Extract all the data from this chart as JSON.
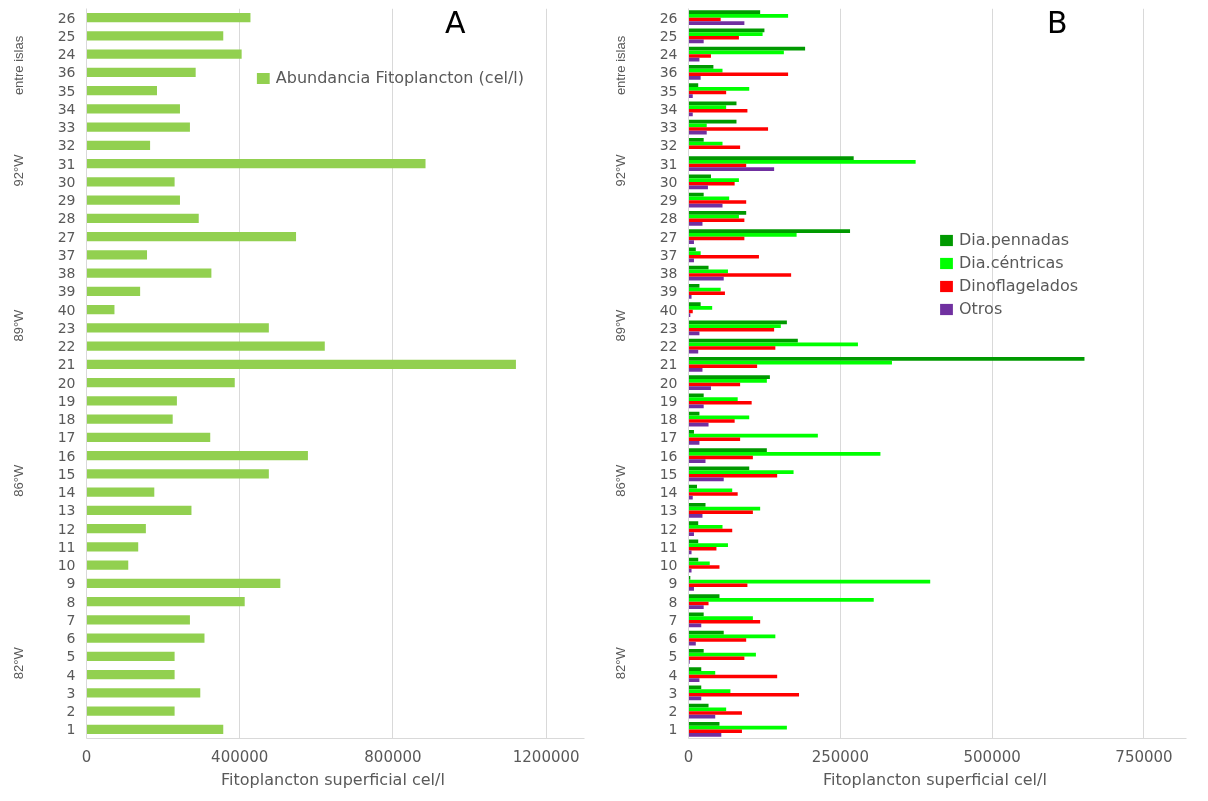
{
  "chart_data": [
    {
      "type": "bar",
      "orientation": "horizontal",
      "title": "A",
      "xlabel": "Fitoplancton superficial  cel/l",
      "categories": [
        "26",
        "25",
        "24",
        "36",
        "35",
        "34",
        "33",
        "32",
        "31",
        "30",
        "29",
        "28",
        "27",
        "37",
        "38",
        "39",
        "40",
        "23",
        "22",
        "21",
        "20",
        "19",
        "18",
        "17",
        "16",
        "15",
        "14",
        "13",
        "12",
        "11",
        "10",
        "9",
        "8",
        "7",
        "6",
        "5",
        "4",
        "3",
        "2",
        "1"
      ],
      "series": [
        {
          "name": "Abundancia Fitoplancton (cel/l)",
          "color": "#92d050",
          "values": [
            428000,
            357000,
            405000,
            285000,
            184000,
            244000,
            270000,
            166000,
            885000,
            230000,
            244000,
            293000,
            547000,
            158000,
            326000,
            140000,
            73000,
            476000,
            622000,
            1121000,
            387000,
            236000,
            225000,
            323000,
            578000,
            476000,
            177000,
            274000,
            155000,
            135000,
            109000,
            506000,
            413000,
            270000,
            308000,
            230000,
            230000,
            297000,
            230000,
            357000
          ]
        }
      ],
      "xlim": [
        0,
        1300000
      ],
      "xticks": [
        0,
        400000,
        800000,
        1200000
      ],
      "grid": "x",
      "legend": "top right",
      "annotations": [
        "entre islas",
        "92°W",
        "89°W",
        "86°W",
        "82°W"
      ]
    },
    {
      "type": "bar",
      "orientation": "horizontal",
      "title": "B",
      "xlabel": "Fitoplancton superficial  cel/l",
      "categories": [
        "26",
        "25",
        "24",
        "36",
        "35",
        "34",
        "33",
        "32",
        "31",
        "30",
        "29",
        "28",
        "27",
        "37",
        "38",
        "39",
        "40",
        "23",
        "22",
        "21",
        "20",
        "19",
        "18",
        "17",
        "16",
        "15",
        "14",
        "13",
        "12",
        "11",
        "10",
        "9",
        "8",
        "7",
        "6",
        "5",
        "4",
        "3",
        "2",
        "1"
      ],
      "series": [
        {
          "name": "Dia.pennadas",
          "color": "#009900",
          "values": [
            118000,
            125000,
            192000,
            41000,
            16000,
            79000,
            79000,
            25000,
            272000,
            37000,
            25000,
            95000,
            266000,
            12000,
            33000,
            18000,
            20000,
            162000,
            180000,
            652000,
            134000,
            25000,
            18000,
            9000,
            129000,
            100000,
            14000,
            28000,
            16000,
            16000,
            16000,
            3000,
            51000,
            25000,
            58000,
            25000,
            21000,
            21000,
            33000,
            51000
          ]
        },
        {
          "name": "Dia.céntricas",
          "color": "#00ff00",
          "values": [
            164000,
            122000,
            157000,
            56000,
            100000,
            62000,
            30000,
            56000,
            374000,
            83000,
            67000,
            83000,
            178000,
            20000,
            65000,
            53000,
            39000,
            152000,
            279000,
            335000,
            129000,
            81000,
            100000,
            213000,
            316000,
            173000,
            72000,
            118000,
            56000,
            65000,
            35000,
            398000,
            305000,
            106000,
            143000,
            111000,
            44000,
            69000,
            62000,
            162000
          ]
        },
        {
          "name": "Dinoflagelados",
          "color": "#ff0000",
          "values": [
            53000,
            83000,
            37000,
            164000,
            62000,
            97000,
            131000,
            85000,
            95000,
            76000,
            95000,
            92000,
            92000,
            116000,
            169000,
            60000,
            7000,
            141000,
            143000,
            113000,
            85000,
            104000,
            76000,
            85000,
            106000,
            146000,
            81000,
            106000,
            72000,
            46000,
            51000,
            97000,
            33000,
            118000,
            95000,
            92000,
            146000,
            182000,
            88000,
            88000
          ]
        },
        {
          "name": "Otros",
          "color": "#7030a0",
          "values": [
            92000,
            25000,
            18000,
            20000,
            7000,
            7000,
            30000,
            0,
            141000,
            32000,
            56000,
            23000,
            9000,
            9000,
            58000,
            5000,
            3000,
            18000,
            16000,
            23000,
            37000,
            25000,
            33000,
            18000,
            28000,
            58000,
            7000,
            23000,
            9000,
            5000,
            5000,
            9000,
            25000,
            21000,
            12000,
            2000,
            18000,
            21000,
            44000,
            54000
          ]
        }
      ],
      "xlim": [
        0,
        820000
      ],
      "xticks": [
        0,
        250000,
        500000,
        750000
      ],
      "grid": "x",
      "legend": "right",
      "annotations": [
        "entre islas",
        "92°W",
        "89°W",
        "86°W",
        "82°W"
      ]
    }
  ]
}
